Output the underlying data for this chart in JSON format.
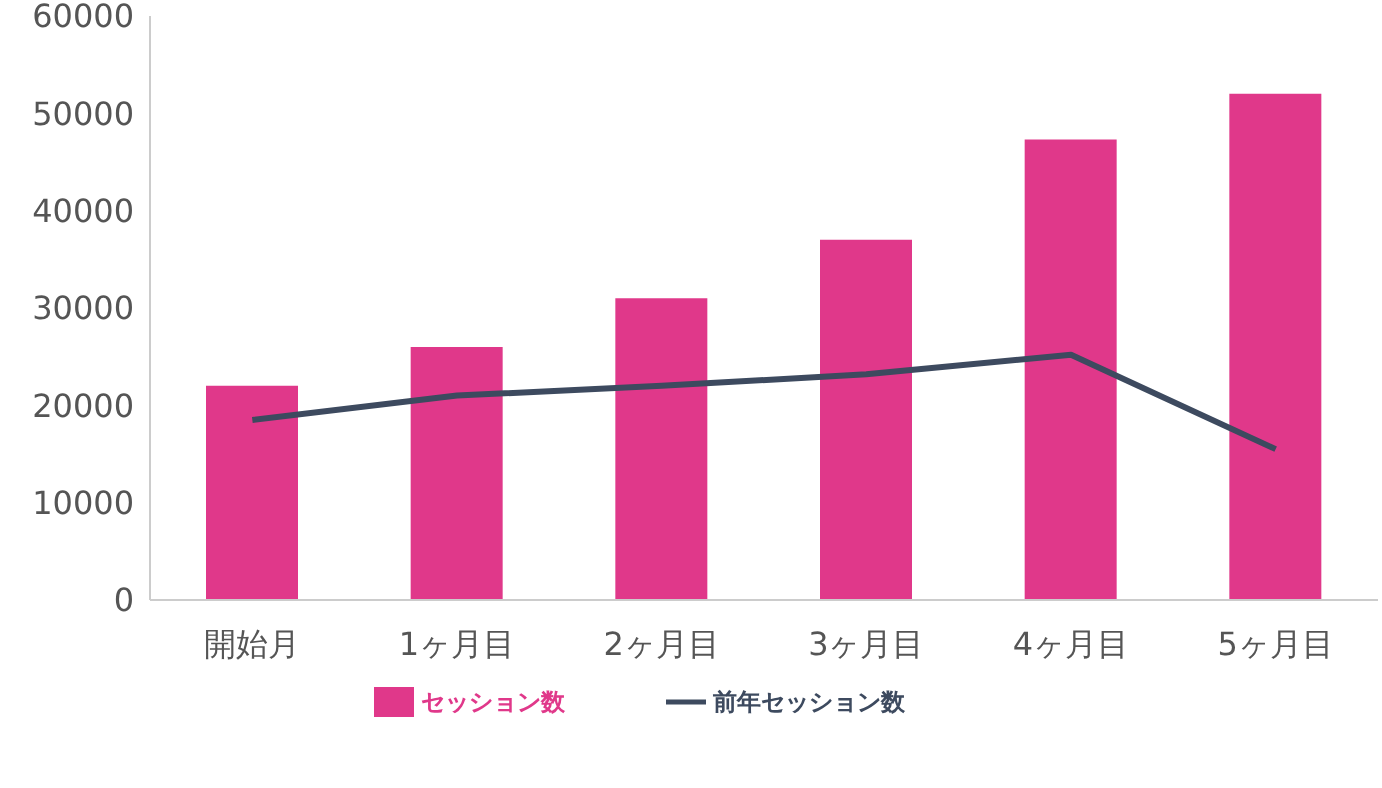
{
  "chart_data": {
    "type": "bar",
    "categories": [
      "開始月",
      "1ヶ月目",
      "2ヶ月目",
      "3ヶ月目",
      "4ヶ月目",
      "5ヶ月目"
    ],
    "series": [
      {
        "name": "セッション数",
        "color": "#e0388a",
        "values": [
          22000,
          26000,
          31000,
          37000,
          47300,
          52000
        ]
      },
      {
        "name": "前年セッション数",
        "type": "line",
        "color": "#3d4a5f",
        "values": [
          18500,
          21000,
          22000,
          23200,
          25200,
          15500
        ]
      }
    ],
    "ylim": [
      0,
      60000
    ],
    "yticks": [
      0,
      10000,
      20000,
      30000,
      40000,
      50000,
      60000
    ],
    "grid": false,
    "legend": "bottom",
    "marker": "none"
  }
}
